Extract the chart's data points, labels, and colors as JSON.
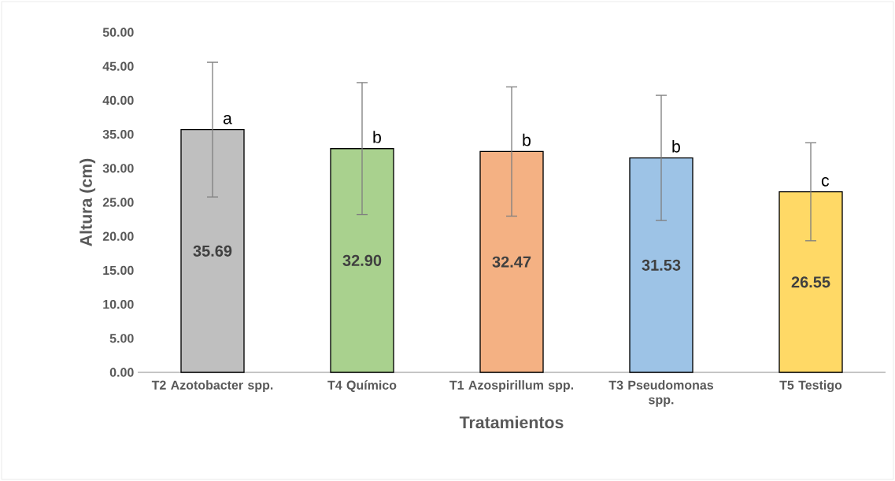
{
  "chart_data": {
    "type": "bar",
    "xlabel": "Tratamientos",
    "ylabel": "Altura (cm)",
    "categories": [
      "T2 Azotobacter spp.",
      "T4 Químico",
      "T1 Azospirillum spp.",
      "T3 Pseudomonas spp.",
      "T5 Testigo"
    ],
    "values": [
      35.69,
      32.9,
      32.47,
      31.53,
      26.55
    ],
    "value_labels": [
      "35.69",
      "32.90",
      "32.47",
      "31.53",
      "26.55"
    ],
    "colors": [
      "#bfbfbf",
      "#a9d18e",
      "#f4b183",
      "#9dc3e6",
      "#ffd966"
    ],
    "errors": [
      9.9,
      9.7,
      9.5,
      9.2,
      7.2
    ],
    "ylim": [
      0,
      50
    ],
    "yticks": [
      {
        "value": 0,
        "label": "0.00"
      },
      {
        "value": 5,
        "label": "5.00"
      },
      {
        "value": 10,
        "label": "10.00"
      },
      {
        "value": 15,
        "label": "15.00"
      },
      {
        "value": 20,
        "label": "20.00"
      },
      {
        "value": 25,
        "label": "25.00"
      },
      {
        "value": 30,
        "label": "30.00"
      },
      {
        "value": 35,
        "label": "35.00"
      },
      {
        "value": 40,
        "label": "40.00"
      },
      {
        "value": 45,
        "label": "45.00"
      },
      {
        "value": 50,
        "label": "50.00"
      }
    ],
    "annotations": [
      {
        "text": "a",
        "x": "T2 Azotobacter spp.",
        "y": 35.69
      },
      {
        "text": "b",
        "x": "T4 Químico",
        "y": 32.9
      },
      {
        "text": "b",
        "x": "T1 Azospirillum spp.",
        "y": 32.47
      },
      {
        "text": "b",
        "x": "T3 Pseudomonas spp.",
        "y": 31.53
      },
      {
        "text": "c",
        "x": "T5 Testigo",
        "y": 26.55
      }
    ],
    "grid": false
  }
}
